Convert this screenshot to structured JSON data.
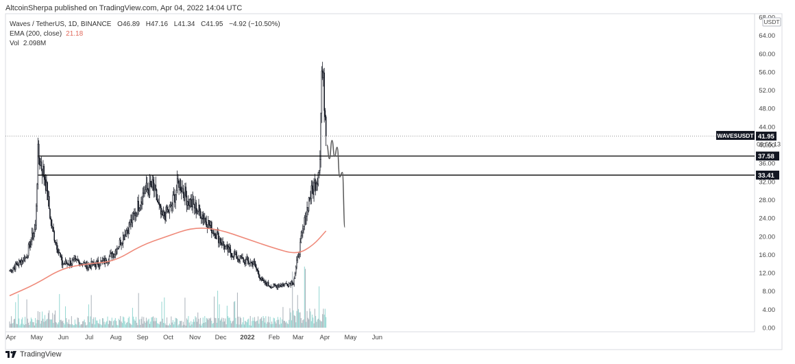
{
  "header": {
    "publisher_text": "AltcoinSherpa published on TradingView.com, Apr 04, 2022 14:04 UTC"
  },
  "legend": {
    "symbol_line": "Waves / TetherUS, 1D, BINANCE",
    "open": "O46.89",
    "high": "H47.16",
    "low": "L41.34",
    "close": "C41.95",
    "change": "−4.92 (−10.50%)",
    "ema_label": "EMA (200, close)",
    "ema_value": "21.18",
    "vol_label": "Vol",
    "vol_value": "2.098M"
  },
  "footer": {
    "brand": "TradingView"
  },
  "colors": {
    "candle": "#131722",
    "ema": "#ef8a7a",
    "volume": "#7fcfc9",
    "volume_dark": "#9aa3ad",
    "level_line": "#000000",
    "axis_text": "#444444",
    "label_bg": "#131722"
  },
  "chart_data": {
    "type": "candlestick",
    "title": "Waves / TetherUS, 1D, BINANCE",
    "y_unit": "USDT",
    "ylim": [
      0,
      68
    ],
    "y_ticks": [
      "68.00",
      "64.00",
      "60.00",
      "56.00",
      "52.00",
      "48.00",
      "44.00",
      "40.00",
      "36.00",
      "32.00",
      "28.00",
      "24.00",
      "20.00",
      "16.00",
      "12.00",
      "8.00",
      "4.00",
      "0.00"
    ],
    "x_tick_labels": [
      "Apr",
      "May",
      "Jun",
      "Jul",
      "Aug",
      "Sep",
      "Oct",
      "Nov",
      "Dec",
      "2022",
      "Feb",
      "Mar",
      "Apr",
      "May",
      "Jun"
    ],
    "price_series_anchors": [
      {
        "date": "2021-04-01",
        "price": 12.5
      },
      {
        "date": "2021-04-20",
        "price": 15.5
      },
      {
        "date": "2021-05-01",
        "price": 22
      },
      {
        "date": "2021-05-04",
        "price": 38
      },
      {
        "date": "2021-05-12",
        "price": 33
      },
      {
        "date": "2021-05-20",
        "price": 22
      },
      {
        "date": "2021-06-01",
        "price": 14
      },
      {
        "date": "2021-06-20",
        "price": 14.5
      },
      {
        "date": "2021-07-01",
        "price": 13.5
      },
      {
        "date": "2021-07-20",
        "price": 14.5
      },
      {
        "date": "2021-08-01",
        "price": 16.5
      },
      {
        "date": "2021-08-20",
        "price": 23
      },
      {
        "date": "2021-09-05",
        "price": 30
      },
      {
        "date": "2021-09-15",
        "price": 31
      },
      {
        "date": "2021-09-25",
        "price": 24
      },
      {
        "date": "2021-10-05",
        "price": 26
      },
      {
        "date": "2021-10-15",
        "price": 32
      },
      {
        "date": "2021-10-25",
        "price": 28
      },
      {
        "date": "2021-11-10",
        "price": 25
      },
      {
        "date": "2021-11-25",
        "price": 21
      },
      {
        "date": "2021-12-10",
        "price": 17
      },
      {
        "date": "2021-12-25",
        "price": 15
      },
      {
        "date": "2022-01-10",
        "price": 14
      },
      {
        "date": "2022-01-20",
        "price": 10
      },
      {
        "date": "2022-02-01",
        "price": 9
      },
      {
        "date": "2022-02-15",
        "price": 9.5
      },
      {
        "date": "2022-02-25",
        "price": 10
      },
      {
        "date": "2022-03-05",
        "price": 18
      },
      {
        "date": "2022-03-15",
        "price": 28
      },
      {
        "date": "2022-03-25",
        "price": 33
      },
      {
        "date": "2022-03-28",
        "price": 38
      },
      {
        "date": "2022-03-30",
        "price": 56
      },
      {
        "date": "2022-04-01",
        "price": 53
      },
      {
        "date": "2022-04-03",
        "price": 47
      },
      {
        "date": "2022-04-04",
        "price": 41.95
      }
    ],
    "ema_series": {
      "name": "EMA (200, close)",
      "points": [
        {
          "date": "2021-04-01",
          "value": 7
        },
        {
          "date": "2021-05-01",
          "value": 9.5
        },
        {
          "date": "2021-06-01",
          "value": 13
        },
        {
          "date": "2021-07-01",
          "value": 14
        },
        {
          "date": "2021-08-01",
          "value": 14.5
        },
        {
          "date": "2021-09-01",
          "value": 18
        },
        {
          "date": "2021-10-01",
          "value": 20
        },
        {
          "date": "2021-11-01",
          "value": 22
        },
        {
          "date": "2021-12-01",
          "value": 21.5
        },
        {
          "date": "2022-01-01",
          "value": 19.5
        },
        {
          "date": "2022-02-01",
          "value": 17.5
        },
        {
          "date": "2022-03-01",
          "value": 16
        },
        {
          "date": "2022-03-20",
          "value": 18
        },
        {
          "date": "2022-04-04",
          "value": 21.18
        }
      ]
    },
    "horizontal_levels": [
      {
        "label": "37.58",
        "value": 37.58
      },
      {
        "label": "33.41",
        "value": 33.41
      }
    ],
    "last_price": {
      "value": 41.95,
      "symbol": "WAVESUSDT",
      "label": "41.95",
      "countdown": "09:55:13"
    },
    "projection_drawing": [
      {
        "date": "2022-04-05",
        "price": 40
      },
      {
        "date": "2022-04-08",
        "price": 37
      },
      {
        "date": "2022-04-11",
        "price": 41
      },
      {
        "date": "2022-04-14",
        "price": 37.5
      },
      {
        "date": "2022-04-17",
        "price": 39.5
      },
      {
        "date": "2022-04-20",
        "price": 33
      },
      {
        "date": "2022-04-23",
        "price": 34
      },
      {
        "date": "2022-04-26",
        "price": 22
      }
    ]
  }
}
